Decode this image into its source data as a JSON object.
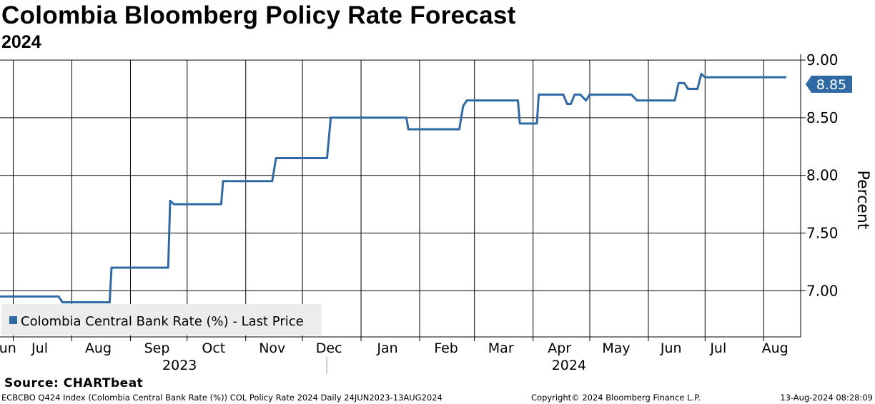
{
  "header": {
    "title": "Colombia Bloomberg Policy Rate Forecast",
    "subtitle": "2024"
  },
  "chart_data": {
    "type": "line",
    "title": "Colombia Bloomberg Policy Rate Forecast",
    "subtitle": "2024",
    "ylabel": "Percent",
    "xlabel": "",
    "ylim": [
      6.6,
      9.05
    ],
    "yticks": [
      7.0,
      7.5,
      8.0,
      8.5,
      9.0
    ],
    "ytick_labels": [
      "7.00",
      "7.50",
      "8.00",
      "8.50",
      "9.00"
    ],
    "grid": true,
    "legend": {
      "position": "bottom-left",
      "label": "Colombia Central Bank Rate (%) - Last Price"
    },
    "last_value_label": "8.85",
    "x_range": [
      "2023-06-24",
      "2024-08-13"
    ],
    "month_ticks": [
      "2023-07-01",
      "2023-08-01",
      "2023-09-01",
      "2023-10-01",
      "2023-11-01",
      "2023-12-01",
      "2024-01-01",
      "2024-02-01",
      "2024-03-01",
      "2024-04-01",
      "2024-05-01",
      "2024-06-01",
      "2024-07-01",
      "2024-08-01"
    ],
    "month_labels": [
      {
        "label": "Jun",
        "date": "2023-06-27"
      },
      {
        "label": "Jul",
        "date": "2023-07-15"
      },
      {
        "label": "Aug",
        "date": "2023-08-15"
      },
      {
        "label": "Sep",
        "date": "2023-09-15"
      },
      {
        "label": "Oct",
        "date": "2023-10-15"
      },
      {
        "label": "Nov",
        "date": "2023-11-15"
      },
      {
        "label": "Dec",
        "date": "2023-12-15"
      },
      {
        "label": "Jan",
        "date": "2024-01-15"
      },
      {
        "label": "Feb",
        "date": "2024-02-15"
      },
      {
        "label": "Mar",
        "date": "2024-03-15"
      },
      {
        "label": "Apr",
        "date": "2024-04-15"
      },
      {
        "label": "May",
        "date": "2024-05-15"
      },
      {
        "label": "Jun",
        "date": "2024-06-13"
      },
      {
        "label": "Jul",
        "date": "2024-07-08"
      },
      {
        "label": "Aug",
        "date": "2024-08-07"
      }
    ],
    "year_labels": [
      {
        "label": "2023",
        "date": "2023-09-27"
      },
      {
        "label": "2024",
        "date": "2024-04-20"
      }
    ],
    "year_divider": "2024-01-01",
    "series": [
      {
        "name": "Colombia Central Bank Rate (%) - Last Price",
        "color": "#2f6aa5",
        "points": [
          [
            "2023-06-24",
            6.95
          ],
          [
            "2023-07-25",
            6.95
          ],
          [
            "2023-07-27",
            6.9
          ],
          [
            "2023-08-21",
            6.9
          ],
          [
            "2023-08-22",
            7.2
          ],
          [
            "2023-09-21",
            7.2
          ],
          [
            "2023-09-22",
            7.78
          ],
          [
            "2023-09-24",
            7.75
          ],
          [
            "2023-10-19",
            7.75
          ],
          [
            "2023-10-20",
            7.95
          ],
          [
            "2023-11-15",
            7.95
          ],
          [
            "2023-11-17",
            8.15
          ],
          [
            "2023-12-14",
            8.15
          ],
          [
            "2023-12-16",
            8.5
          ],
          [
            "2024-01-25",
            8.5
          ],
          [
            "2024-01-26",
            8.4
          ],
          [
            "2024-02-22",
            8.4
          ],
          [
            "2024-02-24",
            8.6
          ],
          [
            "2024-02-26",
            8.65
          ],
          [
            "2024-03-24",
            8.65
          ],
          [
            "2024-03-25",
            8.45
          ],
          [
            "2024-04-03",
            8.45
          ],
          [
            "2024-04-04",
            8.7
          ],
          [
            "2024-04-17",
            8.7
          ],
          [
            "2024-04-19",
            8.62
          ],
          [
            "2024-04-21",
            8.62
          ],
          [
            "2024-04-23",
            8.7
          ],
          [
            "2024-04-26",
            8.7
          ],
          [
            "2024-04-29",
            8.65
          ],
          [
            "2024-05-01",
            8.7
          ],
          [
            "2024-05-23",
            8.7
          ],
          [
            "2024-05-26",
            8.65
          ],
          [
            "2024-06-15",
            8.65
          ],
          [
            "2024-06-17",
            8.8
          ],
          [
            "2024-06-20",
            8.8
          ],
          [
            "2024-06-22",
            8.75
          ],
          [
            "2024-06-27",
            8.75
          ],
          [
            "2024-06-29",
            8.88
          ],
          [
            "2024-07-01",
            8.85
          ],
          [
            "2024-08-13",
            8.85
          ]
        ]
      }
    ]
  },
  "footer": {
    "source": "Source: CHARTbeat",
    "index_info": "ECBCBO Q424 Index (Colombia Central Bank Rate (%)) COL Policy Rate 2024  Daily 24JUN2023-13AUG2024",
    "copyright": "Copyright© 2024 Bloomberg Finance L.P.",
    "timestamp": "13-Aug-2024 08:28:09"
  }
}
